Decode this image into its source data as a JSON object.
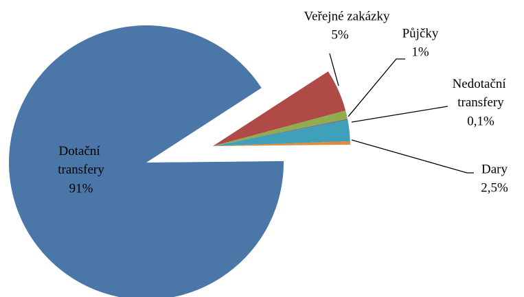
{
  "chart_data": {
    "type": "pie",
    "categories": [
      "Veřejné zakázky",
      "Půjčky",
      "Nedotační transfery",
      "Dary",
      null,
      "Dotační transfery"
    ],
    "values": [
      5,
      1,
      0.1,
      2.5,
      0.4,
      91
    ],
    "value_labels": [
      "5%",
      "1%",
      "0,1%",
      "2,5%",
      null,
      "91%"
    ],
    "colors": [
      "#b04a47",
      "#8fad4f",
      "#6f5592",
      "#3fa0b9",
      "#e08a3c",
      "#4a76a8"
    ]
  }
}
